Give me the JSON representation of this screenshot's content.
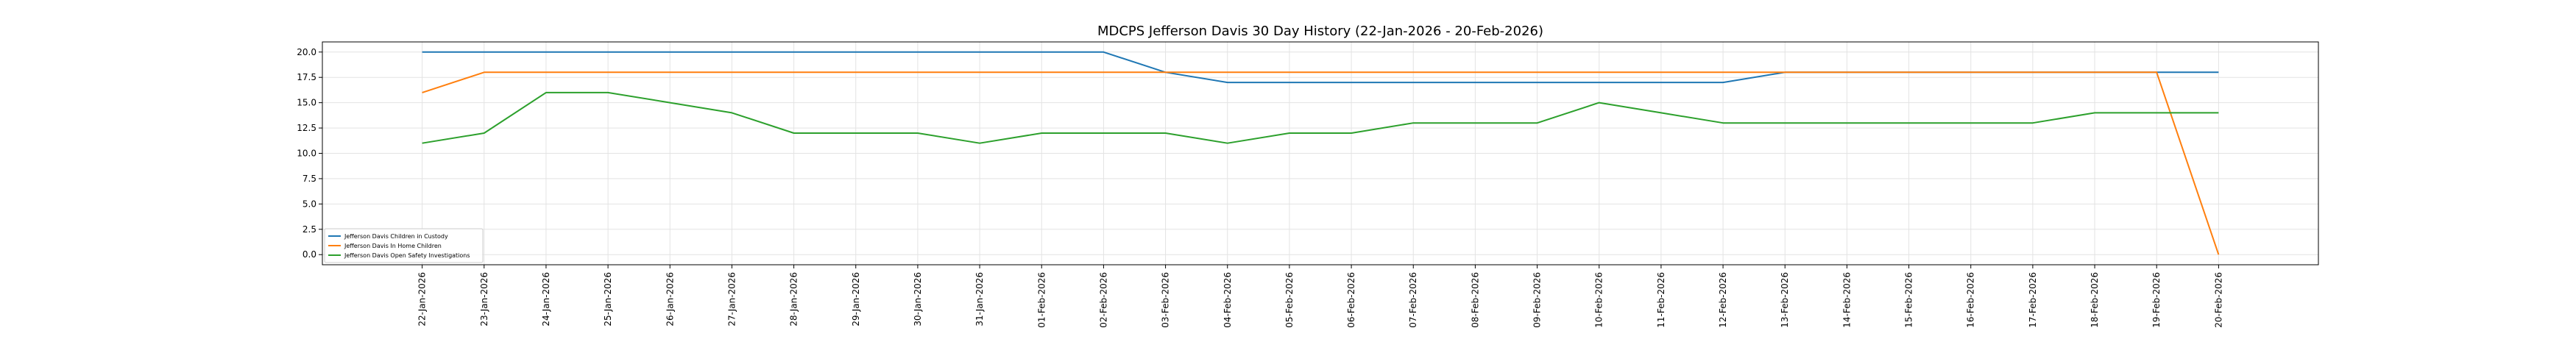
{
  "chart_data": {
    "type": "line",
    "title": "MDCPS Jefferson Davis 30 Day History (22-Jan-2026 - 20-Feb-2026)",
    "xlabel": "",
    "ylabel": "",
    "ylim": [
      -1.0,
      21.0
    ],
    "yticks": [
      "0.0",
      "2.5",
      "5.0",
      "7.5",
      "10.0",
      "12.5",
      "15.0",
      "17.5",
      "20.0"
    ],
    "grid": true,
    "legend_position": "lower-left",
    "categories": [
      "22-Jan-2026",
      "23-Jan-2026",
      "24-Jan-2026",
      "25-Jan-2026",
      "26-Jan-2026",
      "27-Jan-2026",
      "28-Jan-2026",
      "29-Jan-2026",
      "30-Jan-2026",
      "31-Jan-2026",
      "01-Feb-2026",
      "02-Feb-2026",
      "03-Feb-2026",
      "04-Feb-2026",
      "05-Feb-2026",
      "06-Feb-2026",
      "07-Feb-2026",
      "08-Feb-2026",
      "09-Feb-2026",
      "10-Feb-2026",
      "11-Feb-2026",
      "12-Feb-2026",
      "13-Feb-2026",
      "14-Feb-2026",
      "15-Feb-2026",
      "16-Feb-2026",
      "17-Feb-2026",
      "18-Feb-2026",
      "19-Feb-2026",
      "20-Feb-2026"
    ],
    "series": [
      {
        "name": "Jefferson Davis Children in Custody",
        "color": "#1f77b4",
        "values": [
          20,
          20,
          20,
          20,
          20,
          20,
          20,
          20,
          20,
          20,
          20,
          20,
          18,
          17,
          17,
          17,
          17,
          17,
          17,
          17,
          17,
          17,
          18,
          18,
          18,
          18,
          18,
          18,
          18,
          18
        ]
      },
      {
        "name": "Jefferson Davis In Home Children",
        "color": "#ff7f0e",
        "values": [
          16,
          18,
          18,
          18,
          18,
          18,
          18,
          18,
          18,
          18,
          18,
          18,
          18,
          18,
          18,
          18,
          18,
          18,
          18,
          18,
          18,
          18,
          18,
          18,
          18,
          18,
          18,
          18,
          18,
          0
        ]
      },
      {
        "name": "Jefferson Davis Open Safety Investigations",
        "color": "#2ca02c",
        "values": [
          11,
          12,
          16,
          16,
          15,
          14,
          12,
          12,
          12,
          11,
          12,
          12,
          12,
          11,
          12,
          12,
          13,
          13,
          13,
          15,
          14,
          13,
          13,
          13,
          13,
          13,
          13,
          14,
          14,
          14
        ]
      }
    ]
  }
}
